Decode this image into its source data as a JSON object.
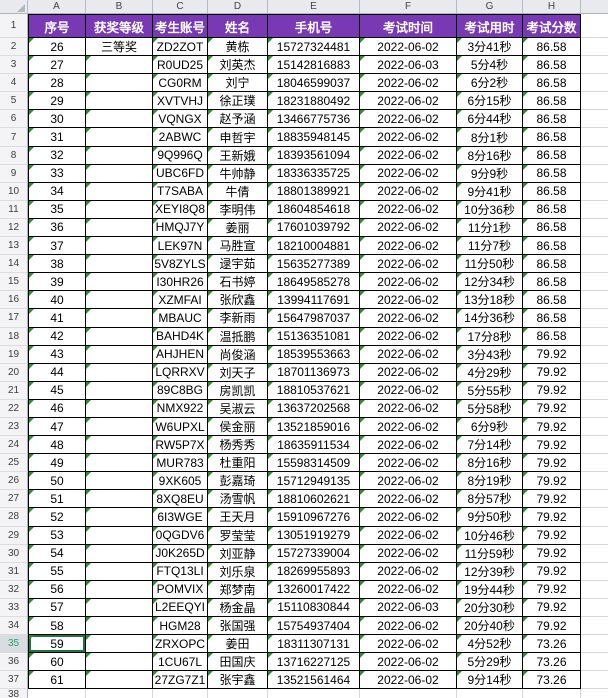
{
  "grid": {
    "column_letters": [
      "A",
      "B",
      "C",
      "D",
      "E",
      "F",
      "G",
      "H"
    ],
    "header_row_number": "1",
    "headers": [
      "序号",
      "获奖等级",
      "考生账号",
      "姓名",
      "手机号",
      "考试时间",
      "考试用时",
      "考试分数"
    ],
    "rows": [
      {
        "row": "2",
        "cells": [
          "26",
          "三等奖",
          "ZD2ZOT",
          "黄栋",
          "15727324481",
          "2022-06-02",
          "3分41秒",
          "86.58"
        ]
      },
      {
        "row": "3",
        "cells": [
          "27",
          "",
          "R0UD25",
          "刘英杰",
          "15142816883",
          "2022-06-03",
          "5分4秒",
          "86.58"
        ]
      },
      {
        "row": "4",
        "cells": [
          "28",
          "",
          "CG0RM",
          "刘宁",
          "18046599037",
          "2022-06-02",
          "6分2秒",
          "86.58"
        ]
      },
      {
        "row": "5",
        "cells": [
          "29",
          "",
          "XVTVHJ",
          "徐正璞",
          "18231880492",
          "2022-06-02",
          "6分15秒",
          "86.58"
        ]
      },
      {
        "row": "6",
        "cells": [
          "30",
          "",
          "VQNGX",
          "赵予涵",
          "13466775736",
          "2022-06-02",
          "6分44秒",
          "86.58"
        ]
      },
      {
        "row": "7",
        "cells": [
          "31",
          "",
          "2ABWC",
          "申哲宇",
          "18835948145",
          "2022-06-02",
          "8分1秒",
          "86.58"
        ]
      },
      {
        "row": "8",
        "cells": [
          "32",
          "",
          "9Q996Q",
          "王新娥",
          "18393561094",
          "2022-06-02",
          "8分16秒",
          "86.58"
        ]
      },
      {
        "row": "9",
        "cells": [
          "33",
          "",
          "UBC6FD",
          "牛帅静",
          "18336335725",
          "2022-06-02",
          "9分9秒",
          "86.58"
        ]
      },
      {
        "row": "10",
        "cells": [
          "34",
          "",
          "T7SABA",
          "牛倩",
          "18801389921",
          "2022-06-02",
          "9分41秒",
          "86.58"
        ]
      },
      {
        "row": "11",
        "cells": [
          "35",
          "",
          "XEYI8Q8",
          "李明伟",
          "18604854618",
          "2022-06-02",
          "10分36秒",
          "86.58"
        ]
      },
      {
        "row": "12",
        "cells": [
          "36",
          "",
          "HMQJ7Y",
          "姜丽",
          "17601039792",
          "2022-06-02",
          "11分1秒",
          "86.58"
        ]
      },
      {
        "row": "13",
        "cells": [
          "37",
          "",
          "LEK97N",
          "马胜宣",
          "18210004881",
          "2022-06-02",
          "11分7秒",
          "86.58"
        ]
      },
      {
        "row": "14",
        "cells": [
          "38",
          "",
          "5V8ZYLS",
          "逯宇茹",
          "15635277389",
          "2022-06-02",
          "11分50秒",
          "86.58"
        ]
      },
      {
        "row": "15",
        "cells": [
          "39",
          "",
          "I30HR26",
          "石书婷",
          "18649585278",
          "2022-06-02",
          "12分34秒",
          "86.58"
        ]
      },
      {
        "row": "16",
        "cells": [
          "40",
          "",
          "XZMFAI",
          "张欣鑫",
          "13994117691",
          "2022-06-02",
          "13分18秒",
          "86.58"
        ]
      },
      {
        "row": "17",
        "cells": [
          "41",
          "",
          "MBAUC",
          "李新雨",
          "15647987037",
          "2022-06-02",
          "14分36秒",
          "86.58"
        ]
      },
      {
        "row": "18",
        "cells": [
          "42",
          "",
          "BAHD4K",
          "温抵鹏",
          "15136351081",
          "2022-06-02",
          "17分8秒",
          "86.58"
        ]
      },
      {
        "row": "19",
        "cells": [
          "43",
          "",
          "AHJHEN",
          "尚俊涵",
          "18539553663",
          "2022-06-02",
          "3分43秒",
          "79.92"
        ]
      },
      {
        "row": "20",
        "cells": [
          "44",
          "",
          "LQRRXV",
          "刘天子",
          "18701136973",
          "2022-06-02",
          "4分29秒",
          "79.92"
        ]
      },
      {
        "row": "21",
        "cells": [
          "45",
          "",
          "89C8BG",
          "房凯凯",
          "18810537621",
          "2022-06-02",
          "5分55秒",
          "79.92"
        ]
      },
      {
        "row": "22",
        "cells": [
          "46",
          "",
          "NMX922",
          "吴淑云",
          "13637202568",
          "2022-06-02",
          "5分58秒",
          "79.92"
        ]
      },
      {
        "row": "23",
        "cells": [
          "47",
          "",
          "W6UPXL",
          "侯金丽",
          "13521859016",
          "2022-06-02",
          "6分9秒",
          "79.92"
        ]
      },
      {
        "row": "24",
        "cells": [
          "48",
          "",
          "RW5P7X",
          "杨秀秀",
          "18635911534",
          "2022-06-02",
          "7分14秒",
          "79.92"
        ]
      },
      {
        "row": "25",
        "cells": [
          "49",
          "",
          "MUR783",
          "杜重阳",
          "15598314509",
          "2022-06-02",
          "8分16秒",
          "79.92"
        ]
      },
      {
        "row": "26",
        "cells": [
          "50",
          "",
          "9XK605",
          "彭嘉琦",
          "15712949135",
          "2022-06-02",
          "8分19秒",
          "79.92"
        ]
      },
      {
        "row": "27",
        "cells": [
          "51",
          "",
          "8XQ8EU",
          "汤雪帆",
          "18810602621",
          "2022-06-02",
          "8分57秒",
          "79.92"
        ]
      },
      {
        "row": "28",
        "cells": [
          "52",
          "",
          "6I3WGE",
          "王天月",
          "15910967276",
          "2022-06-02",
          "9分50秒",
          "79.92"
        ]
      },
      {
        "row": "29",
        "cells": [
          "53",
          "",
          "0QGDV6",
          "罗莹莹",
          "13051919279",
          "2022-06-02",
          "10分46秒",
          "79.92"
        ]
      },
      {
        "row": "30",
        "cells": [
          "54",
          "",
          "J0K265D",
          "刘亚静",
          "15727339004",
          "2022-06-02",
          "11分59秒",
          "79.92"
        ]
      },
      {
        "row": "31",
        "cells": [
          "55",
          "",
          "FTQ13LI",
          "刘乐泉",
          "18269955893",
          "2022-06-02",
          "12分39秒",
          "79.92"
        ]
      },
      {
        "row": "32",
        "cells": [
          "56",
          "",
          "POMVIX",
          "郑梦南",
          "13260017422",
          "2022-06-02",
          "19分44秒",
          "79.92"
        ]
      },
      {
        "row": "33",
        "cells": [
          "57",
          "",
          "L2EEQYI",
          "杨金晶",
          "15110830844",
          "2022-06-03",
          "20分30秒",
          "79.92"
        ]
      },
      {
        "row": "34",
        "cells": [
          "58",
          "",
          "HGM28",
          "张国强",
          "15754937404",
          "2022-06-02",
          "20分40秒",
          "79.92"
        ]
      },
      {
        "row": "35",
        "cells": [
          "59",
          "",
          "ZRXOPC",
          "姜田",
          "18311307131",
          "2022-06-02",
          "4分52秒",
          "73.26"
        ]
      },
      {
        "row": "36",
        "cells": [
          "60",
          "",
          "1CU67L",
          "田国庆",
          "13716227125",
          "2022-06-02",
          "5分29秒",
          "73.26"
        ]
      },
      {
        "row": "37",
        "cells": [
          "61",
          "",
          "27ZG7Z1",
          "张宇鑫",
          "13521561464",
          "2022-06-02",
          "9分14秒",
          "73.26"
        ]
      }
    ],
    "trailing_row_number": "38",
    "selection": {
      "active_row": "35",
      "active_col": "A"
    },
    "triangle_skip_cells": [
      "B2"
    ],
    "colors": {
      "header_bg": "#7939B5",
      "header_text": "#FFFFFF",
      "cell_border": "#000000",
      "gridline": "#D8D8D8",
      "error_triangle": "#2F8F2F",
      "selection_green": "#217346",
      "selected_row_header_text": "#26A269"
    }
  }
}
